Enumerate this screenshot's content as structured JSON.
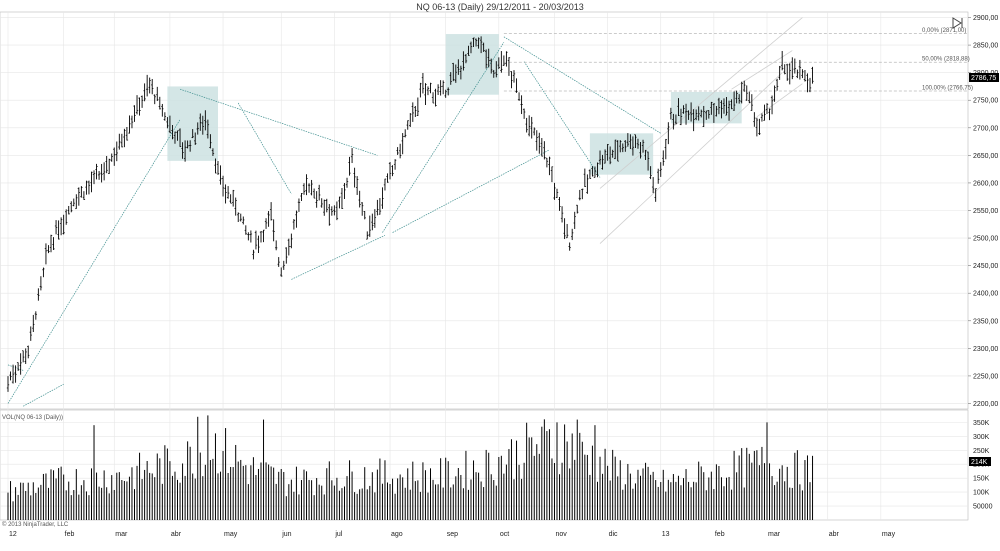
{
  "title": "NQ 06-13 (Daily)  29/12/2011 - 20/03/2013",
  "copyright": "© 2013 NinjaTrader, LLC",
  "volume_label": "VOL(NQ 06-13 (Daily))",
  "colors": {
    "bars": "#000000",
    "box": "#cde2e2",
    "trend": "#3f8f8f",
    "grid": "#e6e6e6",
    "channel": "#cfcfcf",
    "price_badge": "#000000"
  },
  "chart_data": {
    "type": "bar",
    "price_axis": {
      "ticks": [
        2200,
        2250,
        2300,
        2350,
        2400,
        2450,
        2500,
        2550,
        2600,
        2650,
        2700,
        2750,
        2800,
        2850,
        2900
      ],
      "tick_labels": [
        "2200,00",
        "2250,00",
        "2300,00",
        "2350,00",
        "2400,00",
        "2450,00",
        "2500,00",
        "2550,00",
        "2600,00",
        "2650,00",
        "2700,00",
        "2750,00",
        "2800,00",
        "2850,00",
        "2900,00"
      ],
      "ylim": [
        2190,
        2910
      ]
    },
    "volume_axis": {
      "ticks": [
        50000,
        100000,
        150000,
        200000,
        250000,
        300000,
        350000
      ],
      "tick_labels": [
        "50000",
        "100K",
        "150K",
        "200K",
        "250K",
        "300K",
        "350K"
      ],
      "ylim": [
        0,
        380000
      ]
    },
    "time_axis": {
      "labels": [
        "12",
        "feb",
        "mar",
        "abr",
        "may",
        "jun",
        "jul",
        "ago",
        "sep",
        "oct",
        "nov",
        "dic",
        "13",
        "feb",
        "mar",
        "abr",
        "may"
      ],
      "positions": [
        0,
        22,
        42,
        64,
        85,
        108,
        129,
        151,
        173,
        194,
        216,
        237,
        258,
        279,
        300,
        324,
        345
      ],
      "last_bar_index": 305
    },
    "last_price": "2786,75",
    "last_volume": "214K",
    "fib_levels": [
      {
        "label": "0,00% (2871,00)",
        "value": 2871
      },
      {
        "label": "50,00% (2818,88)",
        "value": 2818.88
      },
      {
        "label": "100,00% (2766,75)",
        "value": 2766.75
      }
    ],
    "price_keypoints": [
      [
        0,
        2240
      ],
      [
        8,
        2300
      ],
      [
        16,
        2480
      ],
      [
        26,
        2570
      ],
      [
        38,
        2620
      ],
      [
        46,
        2690
      ],
      [
        56,
        2780
      ],
      [
        62,
        2720
      ],
      [
        70,
        2660
      ],
      [
        78,
        2720
      ],
      [
        84,
        2600
      ],
      [
        90,
        2560
      ],
      [
        97,
        2480
      ],
      [
        104,
        2540
      ],
      [
        108,
        2440
      ],
      [
        118,
        2600
      ],
      [
        130,
        2540
      ],
      [
        136,
        2640
      ],
      [
        142,
        2510
      ],
      [
        150,
        2600
      ],
      [
        158,
        2700
      ],
      [
        164,
        2770
      ],
      [
        172,
        2760
      ],
      [
        180,
        2820
      ],
      [
        186,
        2860
      ],
      [
        192,
        2800
      ],
      [
        196,
        2830
      ],
      [
        202,
        2760
      ],
      [
        206,
        2700
      ],
      [
        212,
        2660
      ],
      [
        218,
        2560
      ],
      [
        222,
        2490
      ],
      [
        226,
        2580
      ],
      [
        234,
        2640
      ],
      [
        240,
        2660
      ],
      [
        246,
        2680
      ],
      [
        252,
        2660
      ],
      [
        256,
        2580
      ],
      [
        262,
        2720
      ],
      [
        270,
        2730
      ],
      [
        278,
        2730
      ],
      [
        286,
        2740
      ],
      [
        292,
        2770
      ],
      [
        296,
        2700
      ],
      [
        302,
        2740
      ],
      [
        306,
        2810
      ],
      [
        312,
        2800
      ],
      [
        318,
        2786
      ]
    ],
    "volume_keypoints": [
      [
        0,
        110000
      ],
      [
        20,
        150000
      ],
      [
        45,
        170000
      ],
      [
        70,
        230000
      ],
      [
        80,
        300000
      ],
      [
        95,
        200000
      ],
      [
        110,
        150000
      ],
      [
        130,
        170000
      ],
      [
        150,
        170000
      ],
      [
        170,
        170000
      ],
      [
        190,
        210000
      ],
      [
        210,
        290000
      ],
      [
        220,
        300000
      ],
      [
        240,
        190000
      ],
      [
        260,
        140000
      ],
      [
        280,
        180000
      ],
      [
        300,
        220000
      ],
      [
        318,
        180000
      ]
    ],
    "volume_spikes": [
      [
        34,
        340000
      ],
      [
        75,
        370000
      ],
      [
        79,
        380000
      ],
      [
        101,
        360000
      ],
      [
        217,
        350000
      ],
      [
        225,
        360000
      ],
      [
        232,
        340000
      ],
      [
        300,
        350000
      ],
      [
        318,
        230000
      ]
    ],
    "boxes": [
      {
        "i0": 63,
        "i1": 83,
        "low": 2640,
        "high": 2775
      },
      {
        "i0": 173,
        "i1": 194,
        "low": 2760,
        "high": 2870
      },
      {
        "i0": 230,
        "i1": 255,
        "low": 2615,
        "high": 2690
      },
      {
        "i0": 262,
        "i1": 290,
        "low": 2708,
        "high": 2765
      }
    ],
    "trend_lines": [
      [
        [
          0,
          2200
        ],
        [
          68,
          2715
        ]
      ],
      [
        [
          68,
          2770
        ],
        [
          146,
          2650
        ]
      ],
      [
        [
          91,
          2745
        ],
        [
          112,
          2580
        ]
      ],
      [
        [
          112,
          2425
        ],
        [
          149,
          2505
        ]
      ],
      [
        [
          148,
          2510
        ],
        [
          196,
          2855
        ]
      ],
      [
        [
          196,
          2865
        ],
        [
          258,
          2690
        ]
      ],
      [
        [
          152,
          2510
        ],
        [
          214,
          2660
        ]
      ],
      [
        [
          204,
          2820
        ],
        [
          234,
          2610
        ]
      ],
      [
        [
          0,
          2270
        ],
        [
          6,
          2260
        ]
      ],
      [
        [
          6,
          2195
        ],
        [
          22,
          2235
        ]
      ]
    ],
    "channel_lines": [
      [
        [
          234,
          2490
        ],
        [
          306,
          2800
        ]
      ],
      [
        [
          234,
          2590
        ],
        [
          314,
          2900
        ]
      ],
      [
        [
          296,
          2720
        ],
        [
          314,
          2780
        ]
      ],
      [
        [
          286,
          2770
        ],
        [
          310,
          2840
        ]
      ]
    ]
  }
}
